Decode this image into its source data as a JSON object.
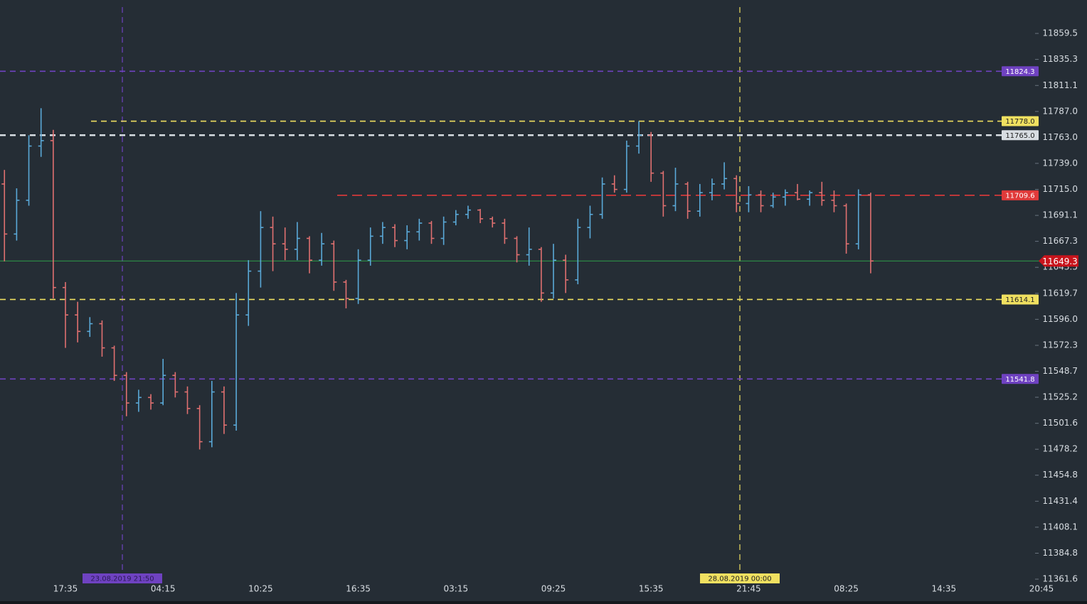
{
  "chart_data": {
    "type": "ohlc",
    "log_scale": true,
    "ylim": [
      11342.6,
      11890.7
    ],
    "yticks": [
      11859.5,
      11835.3,
      11811.1,
      {
        "value": 11787,
        "label": "11787.0"
      },
      {
        "value": 11763,
        "label": "11763.0"
      },
      {
        "value": 11739,
        "label": "11739.0"
      },
      {
        "value": 11715,
        "label": "11715.0"
      },
      11691.1,
      11667.3,
      11643.5,
      11619.7,
      {
        "value": 11596,
        "label": "11596.0"
      },
      11572.3,
      11548.7,
      11525.2,
      11501.6,
      11478.2,
      11454.8,
      11431.4,
      11408.1,
      11384.8,
      11361.6
    ],
    "xtick_labels": [
      "17:35",
      "04:15",
      "10:25",
      "16:35",
      "03:15",
      "09:25",
      "15:35",
      "21:45",
      "08:25",
      "14:35",
      "20:45"
    ],
    "up_color": "#5aa9d8",
    "down_color": "#e07070",
    "open": [
      11720,
      11674,
      11705,
      11755,
      11760,
      11625,
      11600,
      11585,
      11592,
      11570,
      11545,
      11520,
      11525,
      11520,
      11545,
      11530,
      11515,
      11485,
      11530,
      11500,
      11600,
      11640,
      11680,
      11665,
      11660,
      11670,
      11650,
      11665,
      11630,
      11615,
      11650,
      11672,
      11680,
      11668,
      11676,
      11684,
      11670,
      11685,
      11692,
      11696,
      11688,
      11684,
      11670,
      11655,
      11660,
      11620,
      11650,
      11632,
      11680,
      11692,
      11720,
      11715,
      11755,
      11765,
      11730,
      11700,
      11720,
      11695,
      11712,
      11720,
      11725,
      11702,
      11710,
      11700,
      11708,
      11712,
      11706,
      11712,
      11705,
      11700,
      11665,
      11710
    ],
    "high": [
      11733,
      11716,
      11765,
      11790,
      11770,
      11630,
      11612,
      11598,
      11595,
      11572,
      11548,
      11532,
      11528,
      11560,
      11548,
      11535,
      11518,
      11540,
      11535,
      11620,
      11650,
      11695,
      11690,
      11680,
      11685,
      11672,
      11675,
      11668,
      11632,
      11660,
      11680,
      11685,
      11683,
      11682,
      11688,
      11686,
      11690,
      11696,
      11700,
      11697,
      11690,
      11688,
      11672,
      11680,
      11662,
      11665,
      11655,
      11688,
      11700,
      11726,
      11728,
      11760,
      11778,
      11768,
      11732,
      11735,
      11722,
      11720,
      11725,
      11740,
      11728,
      11718,
      11714,
      11712,
      11715,
      11720,
      11714,
      11722,
      11714,
      11702,
      11715,
      11712
    ],
    "low": [
      11649,
      11668,
      11700,
      11745,
      11615,
      11570,
      11575,
      11580,
      11562,
      11540,
      11508,
      11512,
      11514,
      11518,
      11525,
      11510,
      11478,
      11480,
      11492,
      11495,
      11590,
      11625,
      11640,
      11650,
      11650,
      11638,
      11645,
      11622,
      11606,
      11610,
      11645,
      11665,
      11662,
      11660,
      11668,
      11665,
      11664,
      11682,
      11688,
      11684,
      11680,
      11665,
      11648,
      11645,
      11612,
      11615,
      11620,
      11628,
      11670,
      11688,
      11712,
      11712,
      11748,
      11722,
      11690,
      11695,
      11688,
      11690,
      11705,
      11715,
      11694,
      11694,
      11694,
      11698,
      11700,
      11705,
      11700,
      11700,
      11694,
      11656,
      11660,
      11638
    ],
    "close": [
      11674,
      11705,
      11755,
      11760,
      11625,
      11600,
      11585,
      11592,
      11570,
      11545,
      11520,
      11525,
      11520,
      11545,
      11530,
      11515,
      11485,
      11530,
      11500,
      11600,
      11640,
      11680,
      11665,
      11660,
      11670,
      11650,
      11665,
      11630,
      11615,
      11650,
      11672,
      11680,
      11668,
      11676,
      11684,
      11670,
      11685,
      11692,
      11696,
      11688,
      11684,
      11670,
      11655,
      11660,
      11620,
      11650,
      11632,
      11680,
      11692,
      11720,
      11715,
      11755,
      11765,
      11730,
      11700,
      11720,
      11695,
      11712,
      11720,
      11725,
      11702,
      11710,
      11700,
      11708,
      11712,
      11706,
      11712,
      11705,
      11700,
      11665,
      11710,
      11649.3
    ],
    "levels": [
      {
        "value": 11824.3,
        "color": "#6f42c1"
      },
      {
        "value": 11778,
        "label": "11778.0",
        "color": "#f0e060"
      },
      {
        "value": 11765,
        "label": "11765.0",
        "color": "#d8dde2"
      },
      {
        "value": 11709.6,
        "color": "#e03a3a"
      },
      {
        "value": 11614.1,
        "color": "#f0e060"
      },
      {
        "value": 11541.8,
        "color": "#6f42c1"
      }
    ],
    "current_price": {
      "value": 11649.3,
      "color": "#c8141c",
      "line_color": "#2e9e4a"
    },
    "markers": [
      {
        "label": "23.08.2019 21:50",
        "color": "#6f42c1"
      },
      {
        "label": "28.08.2019 00:00",
        "color": "#f0e060"
      }
    ]
  }
}
